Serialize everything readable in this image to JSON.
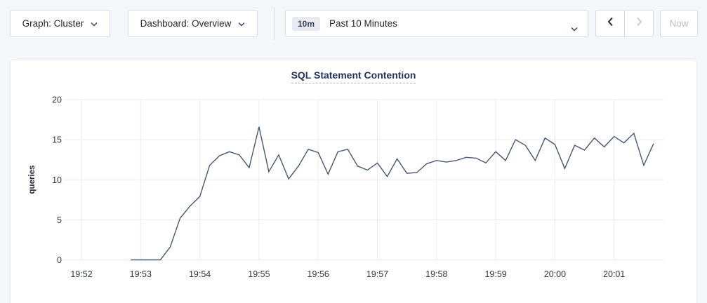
{
  "toolbar": {
    "graph_dropdown_label": "Graph: Cluster",
    "dashboard_dropdown_label": "Dashboard: Overview",
    "time_picker": {
      "range_badge": "10m",
      "range_label": "Past 10 Minutes"
    },
    "now_button_label": "Now"
  },
  "colors": {
    "title_navy": "#26355c",
    "line": "#475872",
    "grid": "#ececee",
    "disabled_text": "#b9c0cf",
    "page_background": "#f4f6fa"
  },
  "chart_data": {
    "type": "line",
    "title": "SQL Statement Contention",
    "xlabel": "",
    "ylabel": "queries",
    "ylim": [
      0,
      20
    ],
    "yticks": [
      0,
      5,
      10,
      15,
      20
    ],
    "x_tick_labels": [
      "19:52",
      "19:53",
      "19:54",
      "19:55",
      "19:56",
      "19:57",
      "19:58",
      "19:59",
      "20:00",
      "20:01"
    ],
    "grid": true,
    "legend_position": "none",
    "series": [
      {
        "name": "SQL Statement Contention",
        "color": "#475872",
        "start": "19:52:50",
        "interval_seconds": 10,
        "values": [
          0,
          0,
          0,
          0,
          1.6,
          5.2,
          6.7,
          7.9,
          11.8,
          13,
          13.5,
          13.1,
          11.5,
          16.6,
          11,
          13.1,
          10.1,
          11.7,
          13.8,
          13.4,
          10.7,
          13.5,
          13.8,
          11.7,
          11.2,
          12.1,
          10.4,
          12.6,
          10.8,
          10.9,
          12,
          12.4,
          12.2,
          12.4,
          12.8,
          12.7,
          12.1,
          13.5,
          12.4,
          15,
          14.3,
          12.4,
          15.2,
          14.4,
          11.4,
          14.3,
          13.7,
          15.2,
          14.1,
          15.4,
          14.6,
          15.8,
          11.8,
          14.5
        ]
      }
    ]
  }
}
